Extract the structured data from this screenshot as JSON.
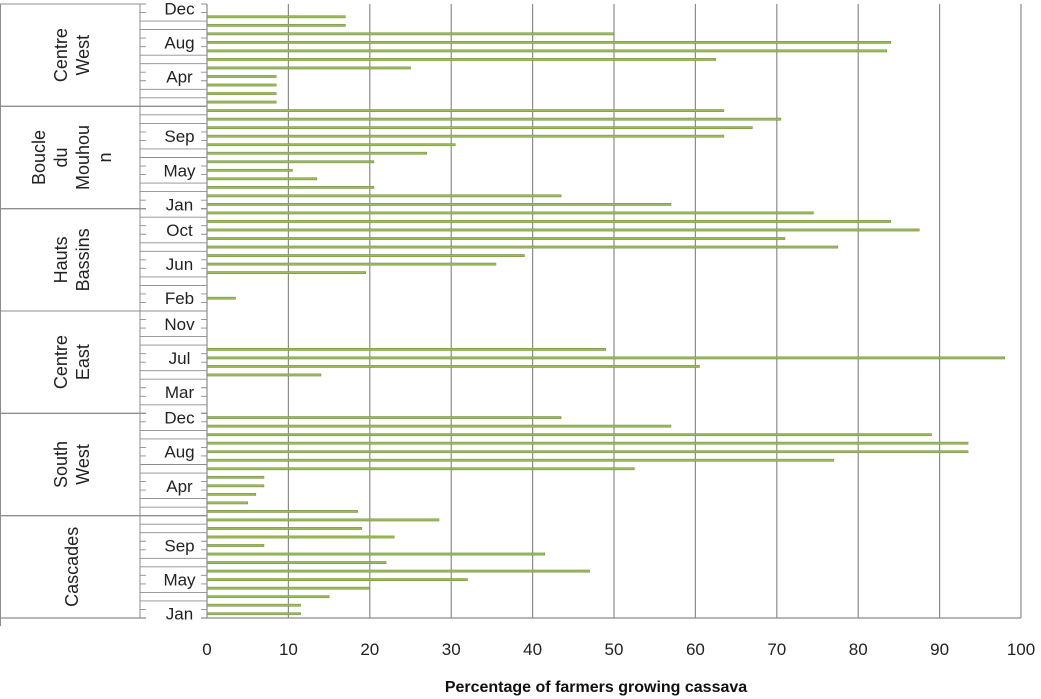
{
  "chart_data": {
    "type": "bar",
    "orientation": "horizontal",
    "title": "",
    "xlabel": "Percentage of farmers growing cassava",
    "ylabel": "",
    "xlim": [
      0,
      100
    ],
    "x_ticks": [
      0,
      10,
      20,
      30,
      40,
      50,
      60,
      70,
      80,
      90,
      100
    ],
    "grid": true,
    "legend": "none",
    "bar_color": "#9bbb59",
    "bar_edge_color": "#6f8a3a",
    "month_order": [
      "Jan",
      "Feb",
      "Mar",
      "Apr",
      "May",
      "Jun",
      "Jul",
      "Aug",
      "Sep",
      "Oct",
      "Nov",
      "Dec"
    ],
    "groups": [
      {
        "name": "Cascades",
        "label_lines": [
          "Cascades"
        ],
        "visible_month_labels": [
          "Jan",
          "May",
          "Sep"
        ],
        "values": [
          11.5,
          11.5,
          15,
          20,
          32,
          47,
          22,
          41.5,
          7,
          23,
          19,
          28.5
        ]
      },
      {
        "name": "South West",
        "label_lines": [
          "South",
          "West"
        ],
        "visible_month_labels": [
          "Apr",
          "Aug",
          "Dec"
        ],
        "values": [
          18.5,
          5,
          6,
          7,
          7,
          52.5,
          77,
          93.5,
          93.5,
          89,
          57,
          43.5
        ]
      },
      {
        "name": "Centre East",
        "label_lines": [
          "Centre",
          "East"
        ],
        "visible_month_labels": [
          "Mar",
          "Jul",
          "Nov"
        ],
        "values": [
          0,
          0,
          0,
          0,
          14,
          60.5,
          98,
          49,
          0,
          0,
          0,
          0
        ]
      },
      {
        "name": "Hauts Bassins",
        "label_lines": [
          "Hauts",
          "Bassins"
        ],
        "visible_month_labels": [
          "Feb",
          "Jun",
          "Oct"
        ],
        "values": [
          0,
          3.5,
          0,
          0,
          19.5,
          35.5,
          39,
          77.5,
          71,
          87.5,
          84,
          74.5
        ]
      },
      {
        "name": "Boucle du Mouhoun",
        "label_lines": [
          "Boucle",
          "du",
          "Mouhou",
          "n"
        ],
        "visible_month_labels": [
          "Jan",
          "May",
          "Sep"
        ],
        "values": [
          57,
          43.5,
          20.5,
          13.5,
          10.5,
          20.5,
          27,
          30.5,
          63.5,
          67,
          70.5,
          63.5
        ]
      },
      {
        "name": "Centre West",
        "label_lines": [
          "Centre",
          "West"
        ],
        "visible_month_labels": [
          "Apr",
          "Aug",
          "Dec"
        ],
        "values": [
          8.5,
          8.5,
          8.5,
          8.5,
          25,
          62.5,
          83.5,
          84,
          50,
          17,
          17,
          0
        ]
      }
    ]
  }
}
